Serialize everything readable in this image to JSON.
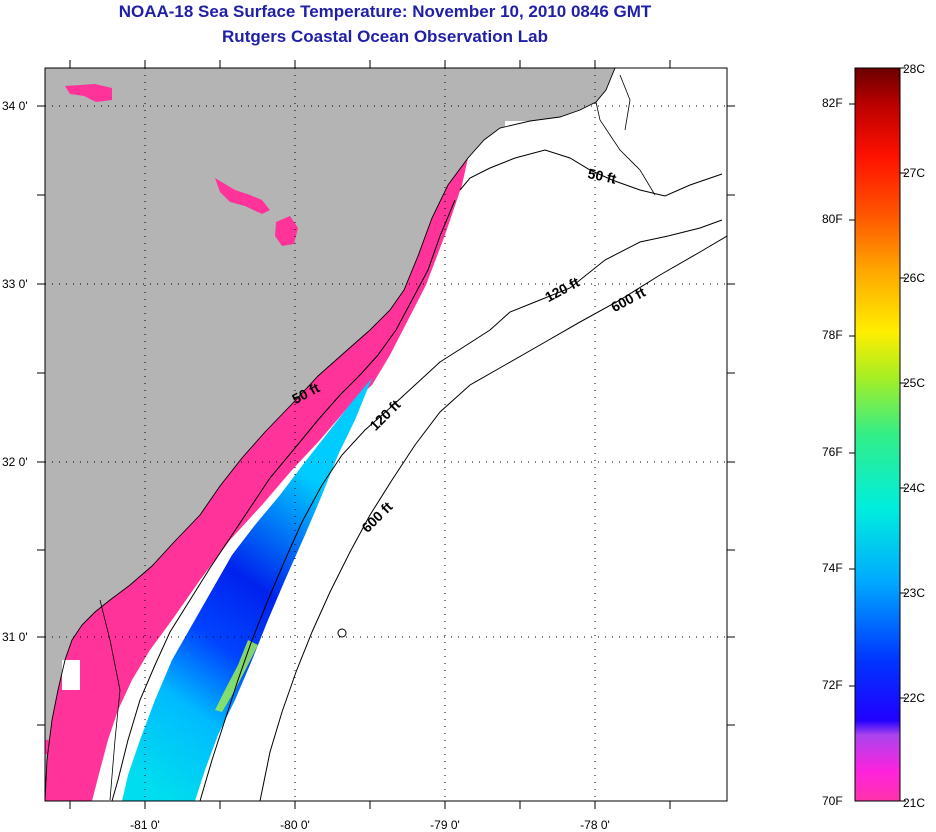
{
  "title": "NOAA-18 Sea Surface Temperature:  November 10, 2010 0846 GMT",
  "subtitle": "Rutgers Coastal Ocean Observation Lab",
  "lat_labels": [
    {
      "text": "34 0'",
      "lat": 34.0
    },
    {
      "text": "33 0'",
      "lat": 33.0
    },
    {
      "text": "32 0'",
      "lat": 32.0
    },
    {
      "text": "31 0'",
      "lat": 31.0
    }
  ],
  "lon_labels": [
    {
      "text": "-81 0'",
      "lon": -81.0
    },
    {
      "text": "-80 0'",
      "lon": -80.0
    },
    {
      "text": "-79 0'",
      "lon": -79.0
    },
    {
      "text": "-78 0'",
      "lon": -78.0
    }
  ],
  "depth_contour_labels": [
    "50 ft",
    "120 ft",
    "600 ft",
    "50 ft",
    "120 ft",
    "600 ft"
  ],
  "colorbar": {
    "fahrenheit_labels": [
      "82F",
      "80F",
      "78F",
      "76F",
      "74F",
      "72F",
      "70F"
    ],
    "celsius_labels": [
      "28C",
      "27C",
      "26C",
      "25C",
      "24C",
      "23C",
      "22C",
      "21C"
    ],
    "colors": {
      "land": "#b4b4b4",
      "cold_pink": "#ff3399",
      "blue": "#0022ff",
      "cyan": "#00ddee",
      "green": "#88ee44",
      "yellow": "#ffee00",
      "red": "#ff1100",
      "dark_red": "#7a0000"
    }
  }
}
